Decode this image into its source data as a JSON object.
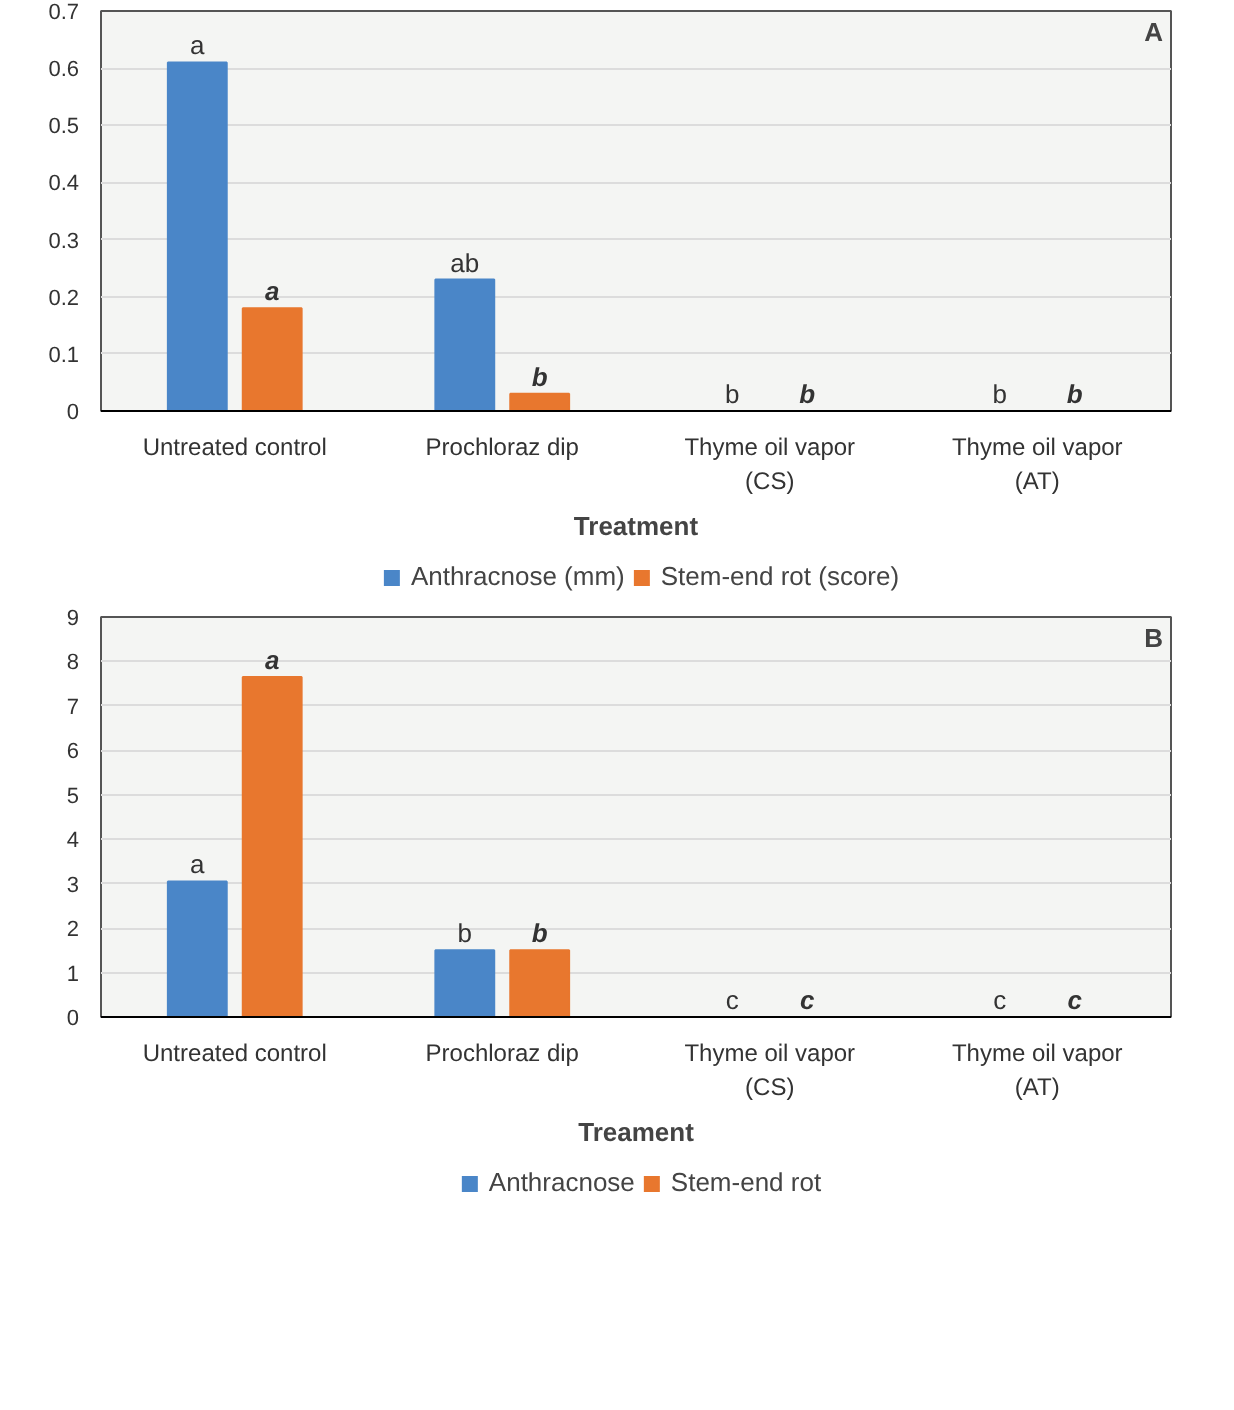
{
  "chart_data": [
    {
      "type": "bar",
      "xlabel": "Treatment",
      "categories": [
        "Untreated control",
        "Prochloraz dip",
        "Thyme oil vapor\n(CS)",
        "Thyme oil vapor\n(AT)"
      ],
      "series": [
        {
          "name": "Anthracnose (mm)",
          "color": "#4a86c8",
          "values": [
            0.61,
            0.23,
            0,
            0
          ],
          "value_labels": [
            "a",
            "ab",
            "b",
            "b"
          ]
        },
        {
          "name": "Stem-end rot (score)",
          "color": "#e8772e",
          "values": [
            0.18,
            0.03,
            0,
            0
          ],
          "value_labels": [
            "a",
            "b",
            "b",
            "b"
          ]
        }
      ],
      "ylim": [
        0,
        0.7
      ],
      "yticks": [
        0,
        0.1,
        0.2,
        0.3,
        0.4,
        0.5,
        0.6,
        0.7
      ],
      "grid": "y",
      "legend": "bottom",
      "annotations": [
        "A"
      ]
    },
    {
      "type": "bar",
      "xlabel": "Treament",
      "categories": [
        "Untreated control",
        "Prochloraz dip",
        "Thyme oil vapor\n(CS)",
        "Thyme oil vapor\n(AT)"
      ],
      "series": [
        {
          "name": "Anthracnose",
          "color": "#4a86c8",
          "values": [
            3.05,
            1.5,
            0,
            0
          ],
          "value_labels": [
            "a",
            "b",
            "c",
            "c"
          ]
        },
        {
          "name": "Stem-end rot",
          "color": "#e8772e",
          "values": [
            7.65,
            1.5,
            0,
            0
          ],
          "value_labels": [
            "a",
            "b",
            "c",
            "c"
          ]
        }
      ],
      "ylim": [
        0,
        9
      ],
      "yticks": [
        0,
        1,
        2,
        3,
        4,
        5,
        6,
        7,
        8,
        9
      ],
      "grid": "y",
      "legend": "bottom",
      "annotations": [
        "B"
      ]
    }
  ]
}
